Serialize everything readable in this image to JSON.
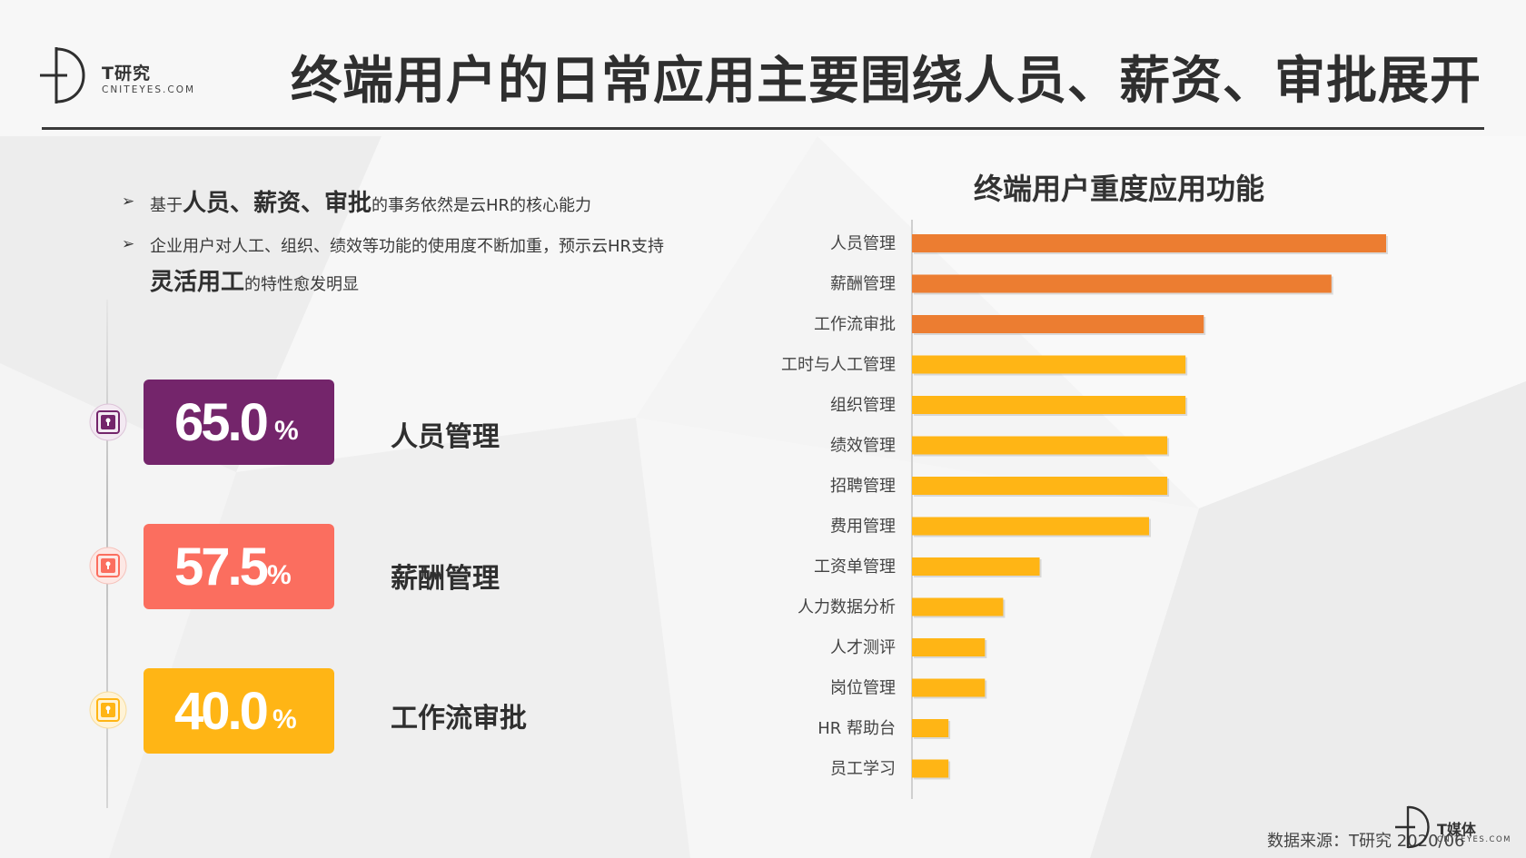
{
  "header": {
    "logo_name": "T研究",
    "logo_sub": "CNITEYES.COM",
    "title": "终端用户的日常应用主要围绕人员、薪资、审批展开"
  },
  "bullets": {
    "arrow": "➢",
    "b1_pre": "基于",
    "b1_em": "人员、薪资、审批",
    "b1_post": "的事务依然是云HR的核心能力",
    "b2_line1": "企业用户对人工、组织、绩效等功能的使用度不断加重，预示云HR支持",
    "b2_em": "灵活用工",
    "b2_post": "的特性愈发明显"
  },
  "kpis": [
    {
      "value": "65.0",
      "unit": "%",
      "label": "人员管理",
      "color": "#74256b",
      "icon": "lock-icon"
    },
    {
      "value": "57.5",
      "unit": "%",
      "label": "薪酬管理",
      "color": "#fb6e5f",
      "icon": "lock-icon"
    },
    {
      "value": "40.0",
      "unit": "%",
      "label": "工作流审批",
      "color": "#ffb515",
      "icon": "lock-icon"
    }
  ],
  "chart_data": {
    "type": "bar",
    "orientation": "horizontal",
    "title": "终端用户重度应用功能",
    "categories": [
      "人员管理",
      "薪酬管理",
      "工作流审批",
      "工时与人工管理",
      "组织管理",
      "绩效管理",
      "招聘管理",
      "费用管理",
      "工资单管理",
      "人力数据分析",
      "人才测评",
      "岗位管理",
      "HR 帮助台",
      "员工学习"
    ],
    "values": [
      65.0,
      57.5,
      40.0,
      37.5,
      37.5,
      35.0,
      35.0,
      32.5,
      17.5,
      12.5,
      10.0,
      10.0,
      5.0,
      5.0
    ],
    "colors": [
      "#ec7d31",
      "#ec7d31",
      "#ec7d31",
      "#ffb515",
      "#ffb515",
      "#ffb515",
      "#ffb515",
      "#ffb515",
      "#ffb515",
      "#ffb515",
      "#ffb515",
      "#ffb515",
      "#ffb515",
      "#ffb515"
    ],
    "xlim": [
      0,
      65
    ]
  },
  "footer": {
    "source": "数据来源：T研究 2020/06",
    "logo_name": "T媒体",
    "logo_sub": "CNITEYES.COM"
  }
}
